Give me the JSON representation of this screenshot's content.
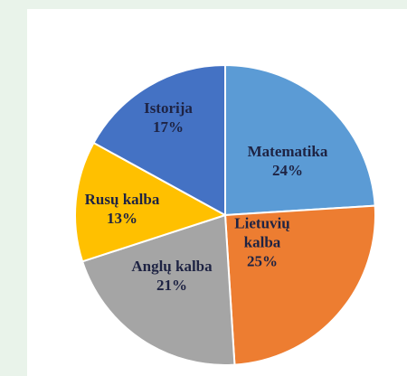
{
  "chart_data": {
    "type": "pie",
    "categories": [
      "Matematika",
      "Lietuvių kalba",
      "Anglų kalba",
      "Rusų kalba",
      "Istorija"
    ],
    "values": [
      24,
      25,
      21,
      13,
      17
    ],
    "value_labels": [
      "24%",
      "25%",
      "21%",
      "13%",
      "17%"
    ],
    "colors": [
      "#5b9bd5",
      "#ed7d31",
      "#a5a5a5",
      "#ffc000",
      "#4472c4"
    ]
  }
}
